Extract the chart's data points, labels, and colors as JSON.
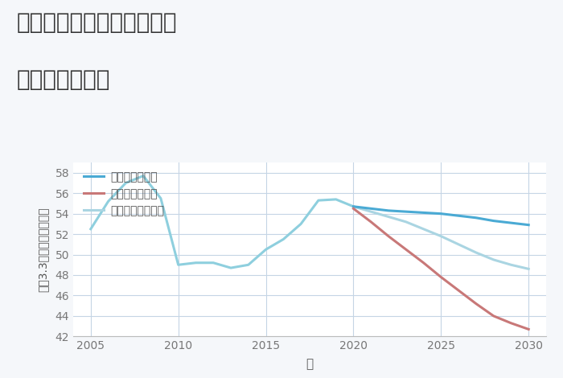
{
  "title_line1": "大阪府東大阪市玉串町西の",
  "title_line2": "土地の価格推移",
  "xlabel": "年",
  "ylabel": "坪（3.3㎡）単価（万円）",
  "fig_background_color": "#f5f7fa",
  "plot_background": "#ffffff",
  "grid_color": "#c5d5e5",
  "ylim": [
    42,
    59
  ],
  "yticks": [
    42,
    44,
    46,
    48,
    50,
    52,
    54,
    56,
    58
  ],
  "xlim": [
    2004,
    2031
  ],
  "xticks": [
    2005,
    2010,
    2015,
    2020,
    2025,
    2030
  ],
  "normal_x": [
    2005,
    2006,
    2007,
    2008,
    2009,
    2010,
    2011,
    2012,
    2013,
    2014,
    2015,
    2016,
    2017,
    2018,
    2019,
    2020
  ],
  "normal_y": [
    52.5,
    55.2,
    57.0,
    57.7,
    55.5,
    49.0,
    49.2,
    49.2,
    48.7,
    49.0,
    50.5,
    51.5,
    53.0,
    55.3,
    55.4,
    54.7
  ],
  "good_x": [
    2020,
    2021,
    2022,
    2023,
    2024,
    2025,
    2026,
    2027,
    2028,
    2029,
    2030
  ],
  "good_y": [
    54.7,
    54.5,
    54.3,
    54.2,
    54.1,
    54.0,
    53.8,
    53.6,
    53.3,
    53.1,
    52.9
  ],
  "bad_x": [
    2020,
    2021,
    2022,
    2023,
    2024,
    2025,
    2026,
    2027,
    2028,
    2029,
    2030
  ],
  "bad_y": [
    54.5,
    53.2,
    51.8,
    50.5,
    49.2,
    47.8,
    46.5,
    45.2,
    44.0,
    43.3,
    42.7
  ],
  "future_normal_x": [
    2020,
    2021,
    2022,
    2023,
    2024,
    2025,
    2026,
    2027,
    2028,
    2029,
    2030
  ],
  "future_normal_y": [
    54.7,
    54.2,
    53.7,
    53.2,
    52.5,
    51.8,
    51.0,
    50.2,
    49.5,
    49.0,
    48.6
  ],
  "color_normal_hist": "#8ecfde",
  "color_good": "#4aaad4",
  "color_bad": "#c87878",
  "color_future_normal": "#aad5e2",
  "legend_good": "グッドシナリオ",
  "legend_bad": "バッドシナリオ",
  "legend_normal": "ノーマルシナリオ",
  "line_width": 2.2,
  "title_fontsize": 20,
  "label_fontsize": 10,
  "tick_fontsize": 10,
  "legend_fontsize": 10
}
